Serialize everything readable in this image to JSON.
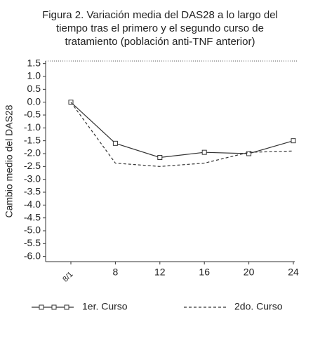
{
  "chart_data": {
    "type": "line",
    "title": [
      "Figura 2. Variación media del DAS28 a lo largo del",
      "tiempo tras el primero y el segundo curso de",
      "tratamiento (población anti-TNF anterior)"
    ],
    "y_label": "Cambio medio del DAS28",
    "categories": [
      "8/1",
      "8",
      "12",
      "16",
      "20",
      "24"
    ],
    "series": [
      {
        "name": "1er. Curso",
        "color": "#333333",
        "marker": "square",
        "dash": "none",
        "values": [
          0,
          -1.6,
          -2.15,
          -1.95,
          -2.0,
          -1.5
        ]
      },
      {
        "name": "2do. Curso",
        "color": "#333333",
        "marker": "none",
        "dash": "4,3",
        "values": [
          0,
          -2.37,
          -2.5,
          -2.37,
          -1.95,
          -1.9
        ]
      }
    ],
    "ylim": [
      -6.2,
      1.6
    ],
    "yticks": [
      1.5,
      {
        "value": 1,
        "label": "1.0"
      },
      0.5,
      {
        "value": 0,
        "label": "0.0"
      },
      -0.5,
      {
        "value": -1,
        "label": "-1.0"
      },
      -1.5,
      {
        "value": -2,
        "label": "-2.0"
      },
      -2.5,
      {
        "value": -3,
        "label": "-3.0"
      },
      -3.5,
      {
        "value": -4,
        "label": "-4.0"
      },
      -4.5,
      {
        "value": -5,
        "label": "-5.0"
      },
      -5.5,
      {
        "value": -6,
        "label": "-6.0"
      }
    ],
    "legend": "bottom"
  }
}
